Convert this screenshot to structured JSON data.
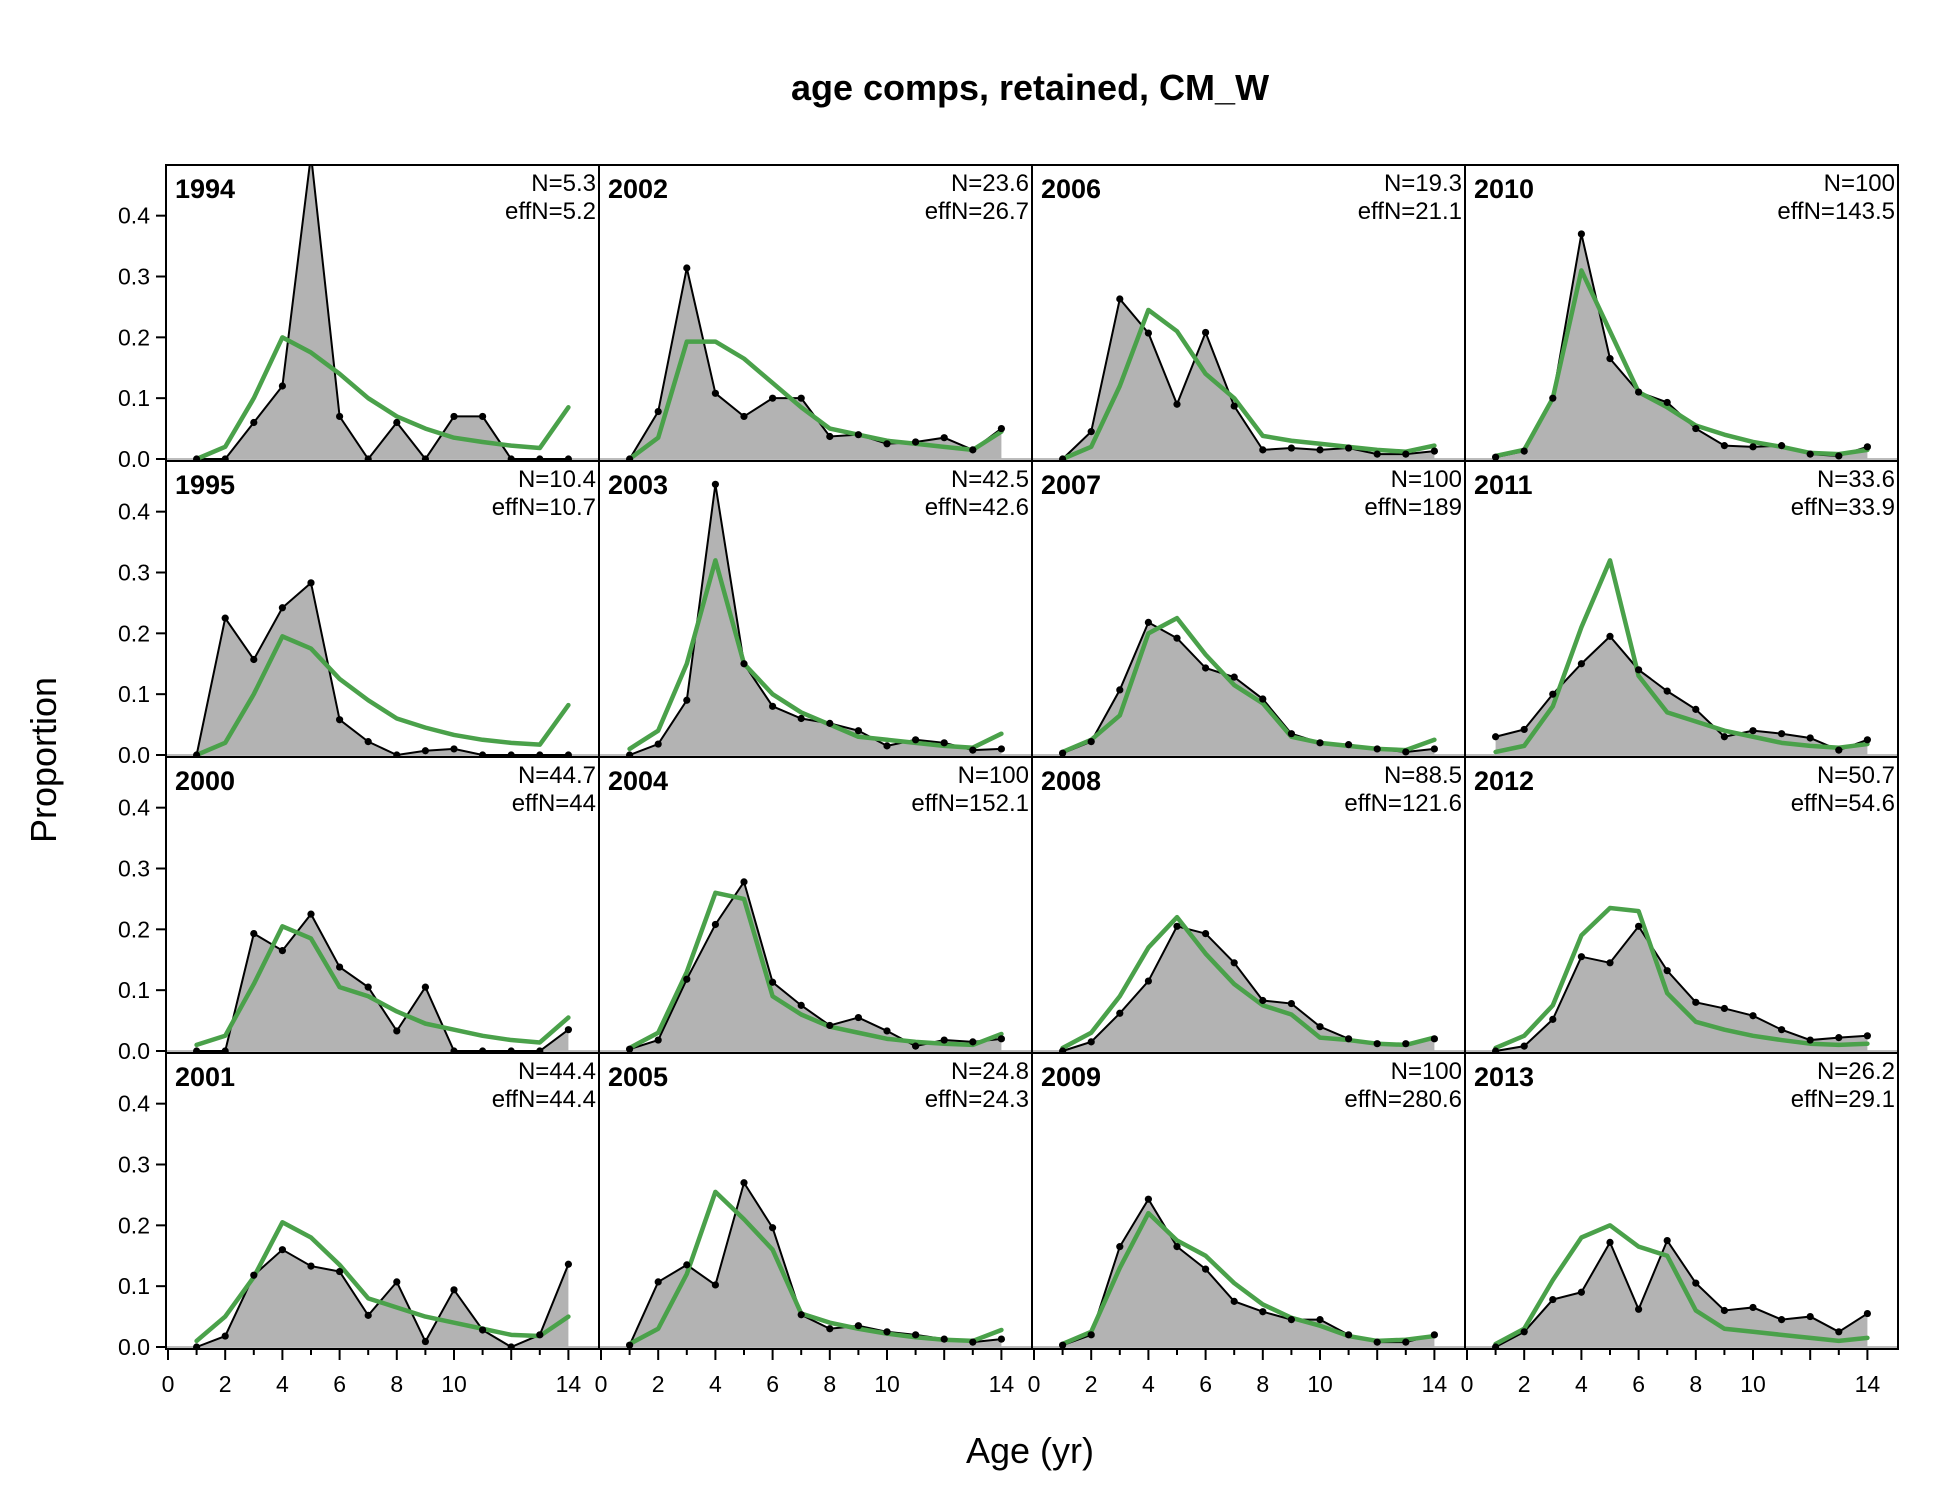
{
  "chart_data": {
    "type": "area",
    "title": "age comps, retained, CM_W",
    "xlabel": "Age (yr)",
    "ylabel": "Proportion",
    "xlim": [
      0,
      15
    ],
    "ylim": [
      0,
      0.48
    ],
    "x_ticks": [
      0,
      2,
      4,
      6,
      8,
      10,
      14
    ],
    "y_ticks": [
      0.0,
      0.1,
      0.2,
      0.3,
      0.4
    ],
    "y_tick_labels": [
      "0.0",
      "0.1",
      "0.2",
      "0.3",
      "0.4"
    ],
    "ages": [
      1,
      2,
      3,
      4,
      5,
      6,
      7,
      8,
      9,
      10,
      11,
      12,
      13,
      14
    ],
    "layout": {
      "rows": 4,
      "cols": 4,
      "order": "column-major"
    },
    "colors": {
      "observed_fill": "#b3b3b3",
      "observed_line": "#000000",
      "expected_line": "#4aa14a"
    },
    "panels": [
      {
        "year": "1994",
        "n_label": "N=5.3",
        "effn_label": "effN=5.2",
        "observed": [
          0,
          0,
          0.06,
          0.12,
          0.5,
          0.07,
          0,
          0.06,
          0,
          0.07,
          0.07,
          0,
          0,
          0
        ],
        "expected": [
          0,
          0.02,
          0.1,
          0.2,
          0.175,
          0.14,
          0.1,
          0.07,
          0.05,
          0.035,
          0.028,
          0.022,
          0.018,
          0.085
        ]
      },
      {
        "year": "1995",
        "n_label": "N=10.4",
        "effn_label": "effN=10.7",
        "observed": [
          0,
          0.225,
          0.157,
          0.242,
          0.283,
          0.058,
          0.022,
          0,
          0.007,
          0.01,
          0,
          0,
          0,
          0
        ],
        "expected": [
          0,
          0.02,
          0.1,
          0.195,
          0.175,
          0.125,
          0.09,
          0.06,
          0.045,
          0.033,
          0.025,
          0.02,
          0.017,
          0.082
        ]
      },
      {
        "year": "2000",
        "n_label": "N=44.7",
        "effn_label": "effN=44",
        "observed": [
          0,
          0,
          0.193,
          0.165,
          0.225,
          0.138,
          0.105,
          0.033,
          0.105,
          0,
          0,
          0,
          0,
          0.035
        ],
        "expected": [
          0.01,
          0.025,
          0.11,
          0.205,
          0.185,
          0.105,
          0.09,
          0.065,
          0.045,
          0.035,
          0.025,
          0.018,
          0.014,
          0.055
        ]
      },
      {
        "year": "2001",
        "n_label": "N=44.4",
        "effn_label": "effN=44.4",
        "observed": [
          0,
          0.018,
          0.118,
          0.16,
          0.133,
          0.124,
          0.052,
          0.107,
          0.009,
          0.094,
          0.028,
          0,
          0.02,
          0.136
        ],
        "expected": [
          0.01,
          0.05,
          0.115,
          0.205,
          0.18,
          0.135,
          0.08,
          0.065,
          0.05,
          0.04,
          0.03,
          0.02,
          0.018,
          0.05
        ]
      },
      {
        "year": "2002",
        "n_label": "N=23.6",
        "effn_label": "effN=26.7",
        "observed": [
          0,
          0.078,
          0.314,
          0.108,
          0.07,
          0.1,
          0.1,
          0.037,
          0.04,
          0.025,
          0.028,
          0.035,
          0.015,
          0.05
        ],
        "expected": [
          0,
          0.035,
          0.193,
          0.193,
          0.165,
          0.125,
          0.085,
          0.05,
          0.04,
          0.03,
          0.025,
          0.02,
          0.015,
          0.045
        ]
      },
      {
        "year": "2003",
        "n_label": "N=42.5",
        "effn_label": "effN=42.6",
        "observed": [
          0,
          0.018,
          0.09,
          0.445,
          0.15,
          0.08,
          0.06,
          0.052,
          0.04,
          0.015,
          0.025,
          0.02,
          0.008,
          0.01
        ],
        "expected": [
          0.01,
          0.04,
          0.15,
          0.32,
          0.15,
          0.1,
          0.07,
          0.05,
          0.03,
          0.025,
          0.02,
          0.015,
          0.012,
          0.035
        ]
      },
      {
        "year": "2004",
        "n_label": "N=100",
        "effn_label": "effN=152.1",
        "observed": [
          0.003,
          0.018,
          0.118,
          0.208,
          0.278,
          0.113,
          0.075,
          0.042,
          0.055,
          0.033,
          0.008,
          0.018,
          0.015,
          0.02
        ],
        "expected": [
          0.005,
          0.03,
          0.13,
          0.26,
          0.25,
          0.09,
          0.06,
          0.04,
          0.03,
          0.02,
          0.015,
          0.012,
          0.01,
          0.028
        ]
      },
      {
        "year": "2005",
        "n_label": "N=24.8",
        "effn_label": "effN=24.3",
        "observed": [
          0.003,
          0.107,
          0.135,
          0.102,
          0.27,
          0.196,
          0.053,
          0.03,
          0.035,
          0.025,
          0.02,
          0.013,
          0.008,
          0.013
        ],
        "expected": [
          0.005,
          0.03,
          0.12,
          0.255,
          0.21,
          0.16,
          0.055,
          0.04,
          0.03,
          0.022,
          0.016,
          0.012,
          0.01,
          0.028
        ]
      },
      {
        "year": "2006",
        "n_label": "N=19.3",
        "effn_label": "effN=21.1",
        "observed": [
          0,
          0.045,
          0.263,
          0.207,
          0.09,
          0.208,
          0.087,
          0.015,
          0.018,
          0.015,
          0.018,
          0.008,
          0.008,
          0.013
        ],
        "expected": [
          0,
          0.02,
          0.12,
          0.245,
          0.21,
          0.14,
          0.1,
          0.038,
          0.03,
          0.025,
          0.02,
          0.015,
          0.012,
          0.022
        ]
      },
      {
        "year": "2007",
        "n_label": "N=100",
        "effn_label": "effN=189",
        "observed": [
          0.003,
          0.022,
          0.107,
          0.218,
          0.192,
          0.143,
          0.128,
          0.092,
          0.035,
          0.02,
          0.017,
          0.01,
          0.005,
          0.01
        ],
        "expected": [
          0.005,
          0.025,
          0.065,
          0.2,
          0.225,
          0.165,
          0.115,
          0.085,
          0.03,
          0.02,
          0.015,
          0.01,
          0.008,
          0.025
        ]
      },
      {
        "year": "2008",
        "n_label": "N=88.5",
        "effn_label": "effN=121.6",
        "observed": [
          0,
          0.015,
          0.062,
          0.115,
          0.205,
          0.193,
          0.145,
          0.083,
          0.078,
          0.04,
          0.02,
          0.012,
          0.012,
          0.02
        ],
        "expected": [
          0.005,
          0.03,
          0.09,
          0.17,
          0.22,
          0.16,
          0.11,
          0.075,
          0.06,
          0.022,
          0.018,
          0.012,
          0.01,
          0.022
        ]
      },
      {
        "year": "2009",
        "n_label": "N=100",
        "effn_label": "effN=280.6",
        "observed": [
          0.003,
          0.02,
          0.165,
          0.243,
          0.165,
          0.128,
          0.075,
          0.058,
          0.045,
          0.045,
          0.02,
          0.008,
          0.008,
          0.02
        ],
        "expected": [
          0.005,
          0.025,
          0.13,
          0.22,
          0.175,
          0.15,
          0.105,
          0.07,
          0.048,
          0.035,
          0.018,
          0.01,
          0.012,
          0.018
        ]
      },
      {
        "year": "2010",
        "n_label": "N=100",
        "effn_label": "effN=143.5",
        "observed": [
          0.003,
          0.013,
          0.1,
          0.37,
          0.165,
          0.11,
          0.093,
          0.05,
          0.022,
          0.02,
          0.022,
          0.008,
          0.005,
          0.02
        ],
        "expected": [
          0.005,
          0.015,
          0.1,
          0.31,
          0.21,
          0.11,
          0.085,
          0.055,
          0.04,
          0.028,
          0.02,
          0.01,
          0.008,
          0.015
        ]
      },
      {
        "year": "2011",
        "n_label": "N=33.6",
        "effn_label": "effN=33.9",
        "observed": [
          0.03,
          0.042,
          0.1,
          0.15,
          0.195,
          0.14,
          0.105,
          0.075,
          0.03,
          0.04,
          0.035,
          0.028,
          0.008,
          0.025
        ],
        "expected": [
          0.005,
          0.015,
          0.08,
          0.21,
          0.32,
          0.13,
          0.07,
          0.055,
          0.04,
          0.03,
          0.02,
          0.015,
          0.012,
          0.018
        ]
      },
      {
        "year": "2012",
        "n_label": "N=50.7",
        "effn_label": "effN=54.6",
        "observed": [
          0,
          0.008,
          0.052,
          0.155,
          0.145,
          0.205,
          0.132,
          0.08,
          0.07,
          0.058,
          0.035,
          0.018,
          0.022,
          0.025
        ],
        "expected": [
          0.005,
          0.025,
          0.075,
          0.19,
          0.235,
          0.23,
          0.095,
          0.048,
          0.035,
          0.025,
          0.018,
          0.012,
          0.01,
          0.012
        ]
      },
      {
        "year": "2013",
        "n_label": "N=26.2",
        "effn_label": "effN=29.1",
        "observed": [
          0,
          0.025,
          0.078,
          0.09,
          0.172,
          0.062,
          0.175,
          0.105,
          0.06,
          0.065,
          0.045,
          0.05,
          0.025,
          0.055
        ],
        "expected": [
          0.005,
          0.03,
          0.11,
          0.18,
          0.2,
          0.165,
          0.15,
          0.06,
          0.03,
          0.025,
          0.02,
          0.015,
          0.01,
          0.015
        ]
      }
    ]
  }
}
